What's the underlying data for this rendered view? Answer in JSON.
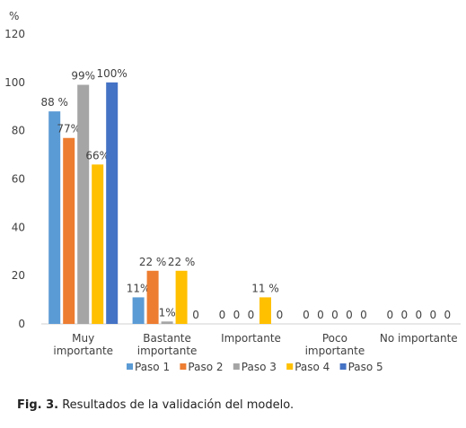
{
  "chart_data": {
    "type": "bar",
    "ylabel": "%",
    "ylim": [
      0,
      120
    ],
    "yticks": [
      0,
      20,
      40,
      60,
      80,
      100,
      120
    ],
    "grid": false,
    "legend_position": "bottom",
    "categories": [
      [
        "Muy",
        "importante"
      ],
      [
        "Bastante",
        "importante"
      ],
      [
        "Importante"
      ],
      [
        "Poco",
        "importante"
      ],
      [
        "No importante"
      ]
    ],
    "series": [
      {
        "name": "Paso 1",
        "color": "#5B9BD5",
        "values": [
          88,
          11,
          0,
          0,
          0
        ],
        "labels": [
          "88 %",
          "11%",
          "0",
          "0",
          "0"
        ]
      },
      {
        "name": "Paso 2",
        "color": "#ED7D31",
        "values": [
          77,
          22,
          0,
          0,
          0
        ],
        "labels": [
          "77%",
          "22 %",
          "0",
          "0",
          "0"
        ]
      },
      {
        "name": "Paso 3",
        "color": "#A5A5A5",
        "values": [
          99,
          1,
          0,
          0,
          0
        ],
        "labels": [
          "99%",
          "1%",
          "0",
          "0",
          "0"
        ]
      },
      {
        "name": "Paso 4",
        "color": "#FFC000",
        "values": [
          66,
          22,
          11,
          0,
          0
        ],
        "labels": [
          "66%",
          "22 %",
          "11 %",
          "0",
          "0"
        ]
      },
      {
        "name": "Paso 5",
        "color": "#4472C4",
        "values": [
          100,
          0,
          0,
          0,
          0
        ],
        "labels": [
          "100%",
          "0",
          "0",
          "0",
          "0"
        ]
      }
    ]
  },
  "caption": {
    "prefix": "Fig. 3.",
    "text": " Resultados de la validación del modelo."
  }
}
